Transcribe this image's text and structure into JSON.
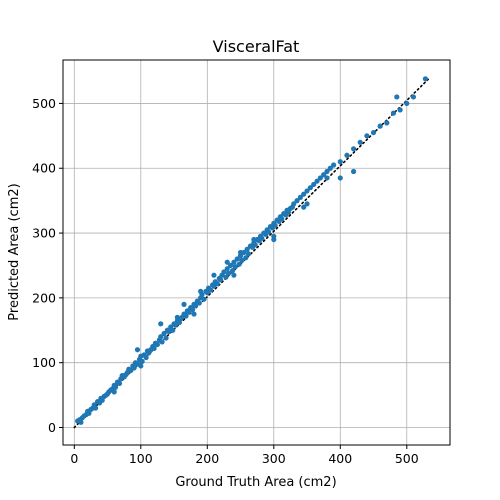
{
  "chart_data": {
    "type": "scatter",
    "title": "VisceralFat",
    "xlabel": "Ground Truth Area (cm2)",
    "ylabel": "Predicted Area (cm2)",
    "xlim": [
      -17,
      565
    ],
    "ylim": [
      -27,
      567
    ],
    "xticks": [
      0,
      100,
      200,
      300,
      400,
      500
    ],
    "yticks": [
      0,
      100,
      200,
      300,
      400,
      500
    ],
    "grid": true,
    "point_color": "#1f77b4",
    "reference_line": {
      "style": "dotted",
      "color": "#000000",
      "x": [
        0,
        535
      ],
      "y": [
        0,
        540
      ]
    },
    "series": [
      {
        "x": [
          5,
          8,
          10,
          12,
          15,
          18,
          20,
          22,
          25,
          28,
          30,
          32,
          35,
          38,
          40,
          42,
          45,
          48,
          50,
          52,
          55,
          58,
          60,
          62,
          65,
          68,
          70,
          72,
          75,
          78,
          80,
          82,
          85,
          88,
          90,
          92,
          95,
          98,
          100,
          102,
          105,
          108,
          110,
          112,
          115,
          118,
          120,
          122,
          125,
          128,
          130,
          132,
          135,
          138,
          140,
          142,
          145,
          148,
          150,
          152,
          155,
          158,
          160,
          162,
          165,
          168,
          170,
          172,
          175,
          178,
          180,
          182,
          185,
          188,
          190,
          192,
          195,
          198,
          200,
          202,
          205,
          208,
          210,
          212,
          215,
          218,
          220,
          222,
          225,
          228,
          230,
          232,
          235,
          238,
          240,
          242,
          245,
          248,
          250,
          252,
          255,
          258,
          260,
          262,
          265,
          268,
          270,
          272,
          275,
          278,
          280,
          282,
          285,
          288,
          290,
          292,
          295,
          298,
          300,
          302,
          305,
          308,
          310,
          312,
          315,
          318,
          320,
          322,
          325,
          328,
          330,
          335,
          340,
          345,
          350,
          355,
          360,
          365,
          370,
          375,
          380,
          385,
          390,
          400,
          410,
          420,
          430,
          440,
          450,
          460,
          470,
          480,
          490,
          500,
          510,
          528,
          60,
          75,
          95,
          130,
          155,
          165,
          190,
          210,
          230,
          250,
          270,
          300,
          320,
          350,
          380,
          420,
          485,
          100,
          140,
          180,
          240,
          300,
          310,
          345,
          400
        ],
        "y": [
          10,
          12,
          8,
          15,
          18,
          20,
          25,
          22,
          28,
          30,
          35,
          30,
          40,
          38,
          45,
          42,
          48,
          50,
          52,
          55,
          58,
          60,
          65,
          62,
          70,
          68,
          75,
          80,
          78,
          82,
          85,
          90,
          88,
          95,
          92,
          100,
          98,
          105,
          110,
          102,
          112,
          108,
          118,
          115,
          120,
          125,
          122,
          130,
          128,
          135,
          140,
          132,
          145,
          138,
          150,
          148,
          155,
          150,
          160,
          158,
          165,
          162,
          168,
          170,
          175,
          172,
          180,
          178,
          185,
          182,
          190,
          188,
          195,
          192,
          200,
          205,
          198,
          210,
          208,
          215,
          212,
          220,
          218,
          225,
          222,
          230,
          228,
          235,
          240,
          232,
          245,
          238,
          250,
          242,
          255,
          248,
          260,
          252,
          265,
          258,
          270,
          262,
          275,
          268,
          280,
          278,
          285,
          282,
          290,
          288,
          295,
          292,
          300,
          298,
          305,
          302,
          310,
          308,
          315,
          312,
          320,
          318,
          325,
          322,
          330,
          328,
          335,
          332,
          338,
          340,
          345,
          350,
          355,
          360,
          365,
          370,
          375,
          380,
          385,
          390,
          395,
          400,
          405,
          410,
          420,
          430,
          440,
          450,
          455,
          465,
          470,
          485,
          490,
          500,
          510,
          538,
          55,
          80,
          120,
          160,
          170,
          190,
          210,
          235,
          255,
          270,
          290,
          295,
          335,
          345,
          385,
          395,
          510,
          95,
          150,
          175,
          235,
          290,
          325,
          340,
          385
        ]
      }
    ]
  }
}
